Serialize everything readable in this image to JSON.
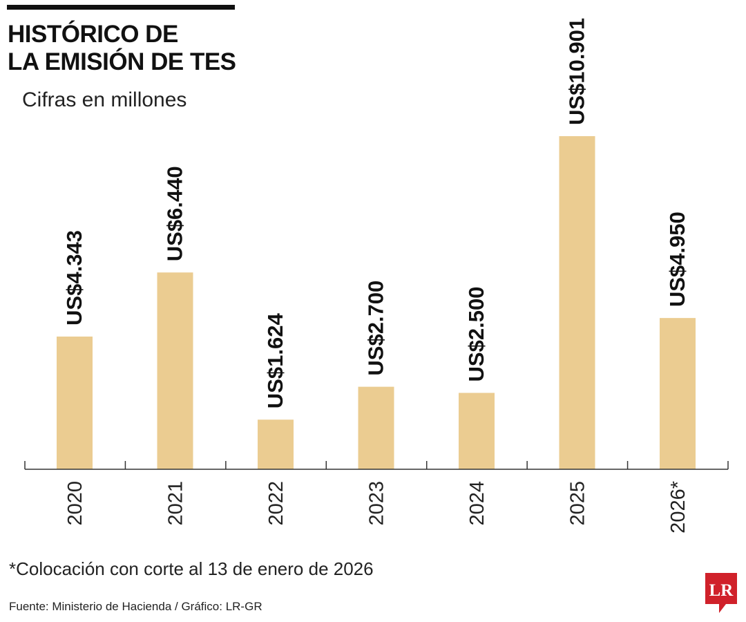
{
  "header": {
    "title_line1": "HISTÓRICO DE",
    "title_line2": "LA EMISIÓN DE TES",
    "subtitle": "Cifras en millones"
  },
  "chart_data": {
    "type": "bar",
    "categories": [
      "2020",
      "2021",
      "2022",
      "2023",
      "2024",
      "2025",
      "2026*"
    ],
    "values": [
      4343,
      6440,
      1624,
      2700,
      2500,
      10901,
      4950
    ],
    "value_labels": [
      "US$4.343",
      "US$6.440",
      "US$1.624",
      "US$2.700",
      "US$2.500",
      "US$10.901",
      "US$4.950"
    ],
    "units": "US$ millones",
    "colors": {
      "bar": "#ebcc91",
      "axis": "#333333",
      "text": "#111111"
    }
  },
  "footer": {
    "note": "*Colocación con corte al 13 de enero de 2026",
    "source": "Fuente: Ministerio de Hacienda / Gráfico: LR-GR",
    "logo_text": "LR",
    "logo_color": "#d0212a"
  }
}
